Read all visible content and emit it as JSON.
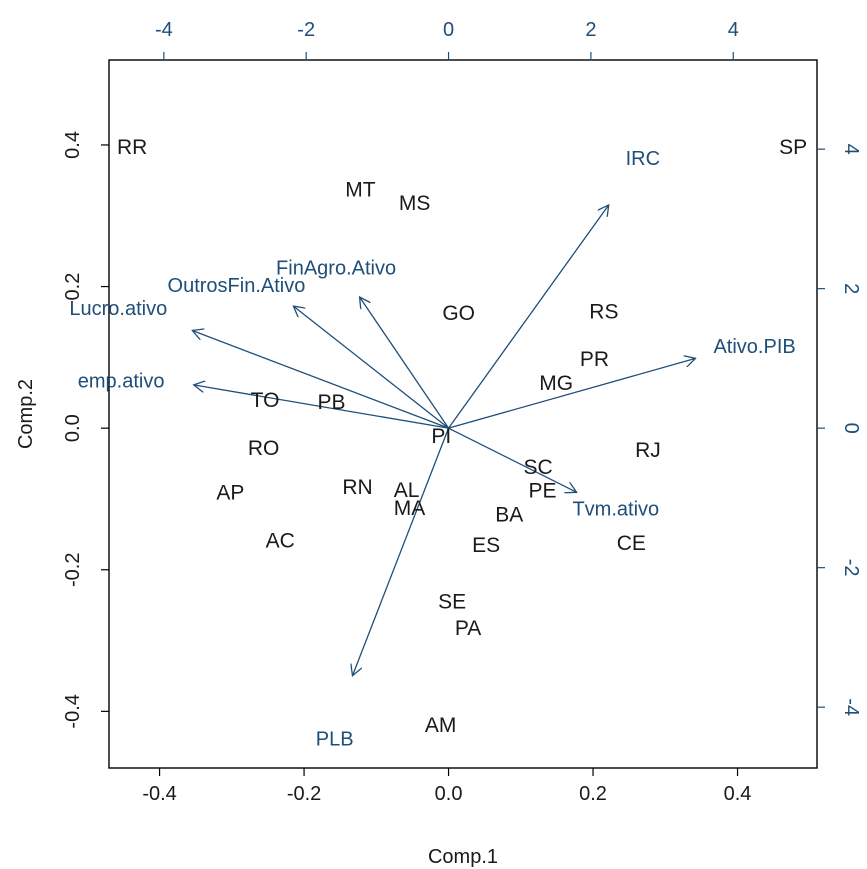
{
  "chart_data": {
    "type": "biplot",
    "xlabel": "Comp.1",
    "ylabel": "Comp.2",
    "xlim": [
      -0.47,
      0.51
    ],
    "ylim": [
      -0.48,
      0.52
    ],
    "x_ticks": [
      "-0.4",
      "-0.2",
      "0.0",
      "0.2",
      "0.4"
    ],
    "y_ticks": [
      "-0.4",
      "-0.2",
      "0.0",
      "0.2",
      "0.4"
    ],
    "top_ticks": [
      "-4",
      "-2",
      "0",
      "2",
      "4"
    ],
    "right_ticks": [
      "-4",
      "-2",
      "0",
      "2",
      "4"
    ],
    "secondary_scale": 10.15,
    "colors": {
      "points": "#1a1a1a",
      "loadings": "#1f4e79"
    },
    "observations": [
      {
        "label": "RR",
        "x": -0.438,
        "y": 0.397
      },
      {
        "label": "SP",
        "x": 0.477,
        "y": 0.397
      },
      {
        "label": "MT",
        "x": -0.122,
        "y": 0.337
      },
      {
        "label": "MS",
        "x": -0.047,
        "y": 0.318
      },
      {
        "label": "GO",
        "x": 0.014,
        "y": 0.163
      },
      {
        "label": "RS",
        "x": 0.215,
        "y": 0.165
      },
      {
        "label": "PR",
        "x": 0.202,
        "y": 0.098
      },
      {
        "label": "MG",
        "x": 0.149,
        "y": 0.064
      },
      {
        "label": "TO",
        "x": -0.254,
        "y": 0.04
      },
      {
        "label": "PB",
        "x": -0.162,
        "y": 0.037
      },
      {
        "label": "PI",
        "x": -0.01,
        "y": -0.011
      },
      {
        "label": "RO",
        "x": -0.256,
        "y": -0.028
      },
      {
        "label": "RJ",
        "x": 0.276,
        "y": -0.031
      },
      {
        "label": "SC",
        "x": 0.124,
        "y": -0.055
      },
      {
        "label": "PE",
        "x": 0.13,
        "y": -0.088
      },
      {
        "label": "RN",
        "x": -0.126,
        "y": -0.083
      },
      {
        "label": "AL",
        "x": -0.058,
        "y": -0.087
      },
      {
        "label": "AP",
        "x": -0.302,
        "y": -0.091
      },
      {
        "label": "MA",
        "x": -0.054,
        "y": -0.113
      },
      {
        "label": "BA",
        "x": 0.084,
        "y": -0.122
      },
      {
        "label": "AC",
        "x": -0.233,
        "y": -0.159
      },
      {
        "label": "ES",
        "x": 0.052,
        "y": -0.165
      },
      {
        "label": "CE",
        "x": 0.253,
        "y": -0.162
      },
      {
        "label": "SE",
        "x": 0.005,
        "y": -0.245
      },
      {
        "label": "PA",
        "x": 0.027,
        "y": -0.282
      },
      {
        "label": "AM",
        "x": -0.011,
        "y": -0.419
      }
    ],
    "variables": [
      {
        "name": "IRC",
        "x": 2.25,
        "y": 3.2,
        "label_x": 2.73,
        "label_y": 3.87
      },
      {
        "name": "FinAgro.Ativo",
        "x": -1.25,
        "y": 1.88,
        "label_x": -1.58,
        "label_y": 2.3
      },
      {
        "name": "OutrosFin.Ativo",
        "x": -2.18,
        "y": 1.75,
        "label_x": -2.98,
        "label_y": 2.05
      },
      {
        "name": "Lucro.ativo",
        "x": -3.6,
        "y": 1.4,
        "label_x": -4.64,
        "label_y": 1.72
      },
      {
        "name": "emp.ativo",
        "x": -3.58,
        "y": 0.62,
        "label_x": -4.6,
        "label_y": 0.68
      },
      {
        "name": "Ativo.PIB",
        "x": 3.47,
        "y": 1.0,
        "label_x": 4.3,
        "label_y": 1.18
      },
      {
        "name": "Tvm.ativo",
        "x": 1.8,
        "y": -0.92,
        "label_x": 2.35,
        "label_y": -1.15
      },
      {
        "name": "PLB",
        "x": -1.35,
        "y": -3.55,
        "label_x": -1.6,
        "label_y": -4.45
      }
    ]
  }
}
